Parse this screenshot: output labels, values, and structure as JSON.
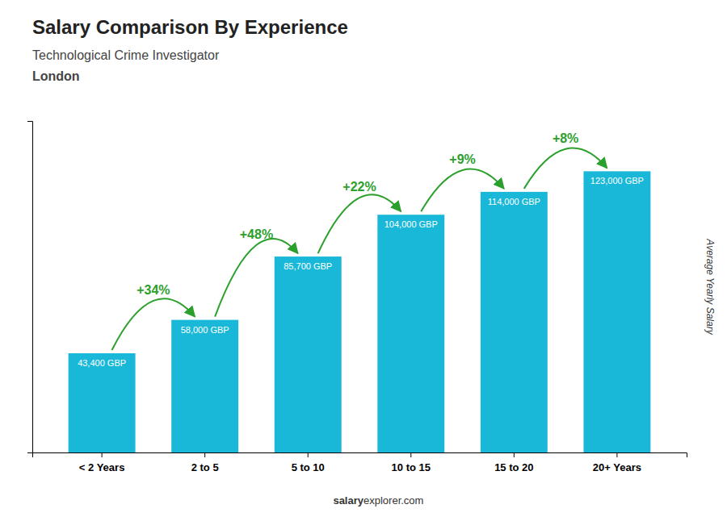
{
  "chart_data": {
    "type": "bar",
    "title": "Salary Comparison By Experience",
    "subtitle": "Technological Crime Investigator",
    "city": "London",
    "categories": [
      "< 2 Years",
      "2 to 5",
      "5 to 10",
      "10 to 15",
      "15 to 20",
      "20+ Years"
    ],
    "values": [
      43400,
      58000,
      85700,
      104000,
      114000,
      123000
    ],
    "value_labels": [
      "43,400 GBP",
      "58,000 GBP",
      "85,700 GBP",
      "104,000 GBP",
      "114,000 GBP",
      "123,000 GBP"
    ],
    "data_labels": true,
    "color": "#1ab8d8",
    "ylabel": "Average Yearly Salary",
    "ylim": [
      0,
      145000
    ],
    "grid": false,
    "tick_labels": "x",
    "annotations": [
      "+34%",
      "+48%",
      "+22%",
      "+9%",
      "+8%"
    ],
    "footer": [
      "salary",
      "explorer.com"
    ]
  }
}
